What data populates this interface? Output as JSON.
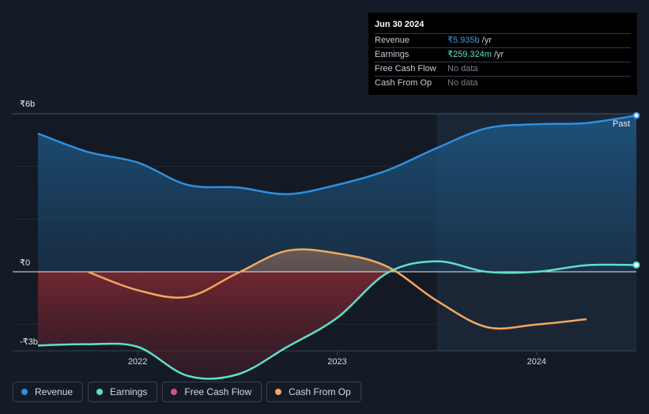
{
  "tooltip": {
    "date": "Jun 30 2024",
    "rows": [
      {
        "label": "Revenue",
        "value": "₹5.935b",
        "unit": "/yr",
        "color": "#3b9fe8"
      },
      {
        "label": "Earnings",
        "value": "₹259.324m",
        "unit": "/yr",
        "color": "#5ee0c8"
      },
      {
        "label": "Free Cash Flow",
        "value": "No data",
        "unit": "",
        "color": "#7a808a"
      },
      {
        "label": "Cash From Op",
        "value": "No data",
        "unit": "",
        "color": "#7a808a"
      }
    ]
  },
  "past_label": "Past",
  "legend": [
    {
      "label": "Revenue",
      "color": "#2e8fe0"
    },
    {
      "label": "Earnings",
      "color": "#5ee0c8"
    },
    {
      "label": "Free Cash Flow",
      "color": "#d0508a"
    },
    {
      "label": "Cash From Op",
      "color": "#f0a860"
    }
  ],
  "chart_data": {
    "type": "line",
    "title": "",
    "y_tick_labels": [
      "₹6b",
      "₹0",
      "-₹3b"
    ],
    "ylim": [
      -3,
      6
    ],
    "xlim": [
      2021.5,
      2024.5
    ],
    "x_tick_labels": [
      "2022",
      "2023",
      "2024"
    ],
    "x_ticks": [
      2022,
      2023,
      2024
    ],
    "past_start": 2023.5,
    "series": [
      {
        "name": "Revenue",
        "color": "#2e8fe0",
        "x": [
          2021.5,
          2021.75,
          2022.0,
          2022.25,
          2022.5,
          2022.75,
          2023.0,
          2023.25,
          2023.5,
          2023.75,
          2024.0,
          2024.25,
          2024.5
        ],
        "values": [
          5.25,
          4.55,
          4.15,
          3.3,
          3.2,
          2.95,
          3.3,
          3.85,
          4.7,
          5.45,
          5.6,
          5.65,
          5.935
        ]
      },
      {
        "name": "Earnings",
        "color": "#5ee0c8",
        "x": [
          2021.5,
          2021.75,
          2022.0,
          2022.25,
          2022.5,
          2022.75,
          2023.0,
          2023.25,
          2023.5,
          2023.75,
          2024.0,
          2024.25,
          2024.5
        ],
        "values": [
          -2.8,
          -2.75,
          -2.85,
          -3.95,
          -3.9,
          -2.85,
          -1.75,
          -0.05,
          0.4,
          0.0,
          0.0,
          0.25,
          0.259
        ]
      },
      {
        "name": "Cash From Op",
        "color": "#f0a860",
        "x": [
          2021.75,
          2022.0,
          2022.25,
          2022.5,
          2022.75,
          2023.0,
          2023.25,
          2023.5,
          2023.75,
          2024.0,
          2024.25
        ],
        "values": [
          0.0,
          -0.7,
          -0.95,
          -0.05,
          0.8,
          0.7,
          0.2,
          -1.1,
          -2.1,
          -2.0,
          -1.8
        ]
      }
    ]
  }
}
